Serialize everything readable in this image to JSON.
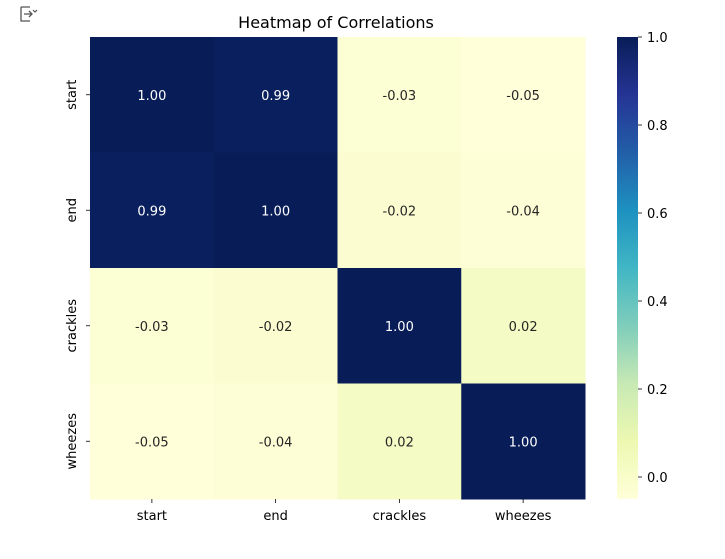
{
  "chart_data": {
    "type": "heatmap",
    "title": "Heatmap of Correlations",
    "xlabel": "",
    "ylabel": "",
    "x_categories": [
      "start",
      "end",
      "crackles",
      "wheezes"
    ],
    "y_categories": [
      "start",
      "end",
      "crackles",
      "wheezes"
    ],
    "values": [
      [
        1.0,
        0.99,
        -0.03,
        -0.05
      ],
      [
        0.99,
        1.0,
        -0.02,
        -0.04
      ],
      [
        -0.03,
        -0.02,
        1.0,
        0.02
      ],
      [
        -0.05,
        -0.04,
        0.02,
        1.0
      ]
    ],
    "value_format": "2 decimals",
    "colormap": "YlGnBu",
    "color_range": [
      -0.05,
      1.0
    ],
    "colorbar_ticks": [
      "1.0",
      "0.8",
      "0.6",
      "0.4",
      "0.2",
      "0.0"
    ],
    "colorbar_tick_values": [
      1.0,
      0.8,
      0.6,
      0.4,
      0.2,
      0.0
    ]
  },
  "icons": {
    "toolbar": "expand-icon"
  }
}
